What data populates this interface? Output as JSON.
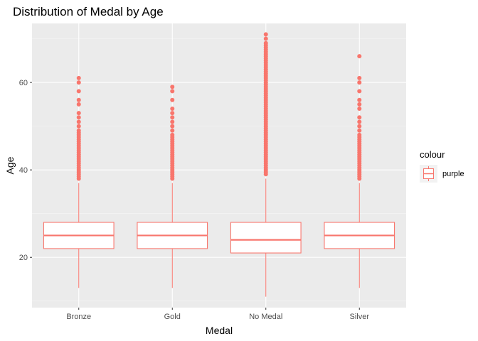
{
  "chart_data": {
    "type": "box",
    "title": "Distribution of Medal by Age",
    "xlabel": "Medal",
    "ylabel": "Age",
    "categories": [
      "Bronze",
      "Gold",
      "No Medal",
      "Silver"
    ],
    "ylim": [
      8.5,
      73.5
    ],
    "yticks": [
      20,
      40,
      60
    ],
    "grid": true,
    "legend": {
      "title": "colour",
      "entries": [
        "purple"
      ],
      "position": "right"
    },
    "colors": {
      "box": "#F8766D",
      "panel": "#EBEBEB",
      "grid_major": "#FFFFFF",
      "grid_minor": "#F5F5F5"
    },
    "boxes": [
      {
        "category": "Bronze",
        "whisker_low": 13,
        "q1": 22,
        "median": 25,
        "q3": 28,
        "whisker_high": 37,
        "outliers": [
          38,
          38.5,
          39,
          39.5,
          40,
          40.5,
          41,
          41.5,
          42,
          42.5,
          43,
          43.5,
          44,
          44.5,
          45,
          45.5,
          46,
          46.5,
          47,
          47.5,
          48,
          48.5,
          49,
          50,
          51,
          52,
          53,
          55,
          56,
          58,
          60,
          61
        ]
      },
      {
        "category": "Gold",
        "whisker_low": 13,
        "q1": 22,
        "median": 25,
        "q3": 28,
        "whisker_high": 37,
        "outliers": [
          38,
          38.5,
          39,
          39.5,
          40,
          40.5,
          41,
          41.5,
          42,
          42.5,
          43,
          43.5,
          44,
          44.5,
          45,
          45.5,
          46,
          46.5,
          47,
          47.5,
          48,
          49,
          50,
          51,
          52,
          53,
          54,
          56,
          58,
          59
        ]
      },
      {
        "category": "No Medal",
        "whisker_low": 11,
        "q1": 21,
        "median": 24,
        "q3": 28,
        "whisker_high": 38,
        "outliers": [
          39,
          39.5,
          40,
          40.5,
          41,
          41.5,
          42,
          42.5,
          43,
          43.5,
          44,
          44.5,
          45,
          45.5,
          46,
          46.5,
          47,
          47.5,
          48,
          48.5,
          49,
          49.5,
          50,
          50.5,
          51,
          51.5,
          52,
          52.5,
          53,
          53.5,
          54,
          54.5,
          55,
          55.5,
          56,
          56.5,
          57,
          57.5,
          58,
          58.5,
          59,
          59.5,
          60,
          60.5,
          61,
          61.5,
          62,
          62.5,
          63,
          63.5,
          64,
          64.5,
          65,
          65.5,
          66,
          66.5,
          67,
          67.5,
          68,
          68.5,
          69,
          70,
          71
        ]
      },
      {
        "category": "Silver",
        "whisker_low": 13,
        "q1": 22,
        "median": 25,
        "q3": 28,
        "whisker_high": 37,
        "outliers": [
          38,
          38.5,
          39,
          39.5,
          40,
          40.5,
          41,
          41.5,
          42,
          42.5,
          43,
          43.5,
          44,
          44.5,
          45,
          45.5,
          46,
          46.5,
          47,
          47.5,
          48,
          49,
          50,
          51,
          52,
          54,
          55,
          56,
          58,
          60,
          61,
          66
        ]
      }
    ]
  }
}
